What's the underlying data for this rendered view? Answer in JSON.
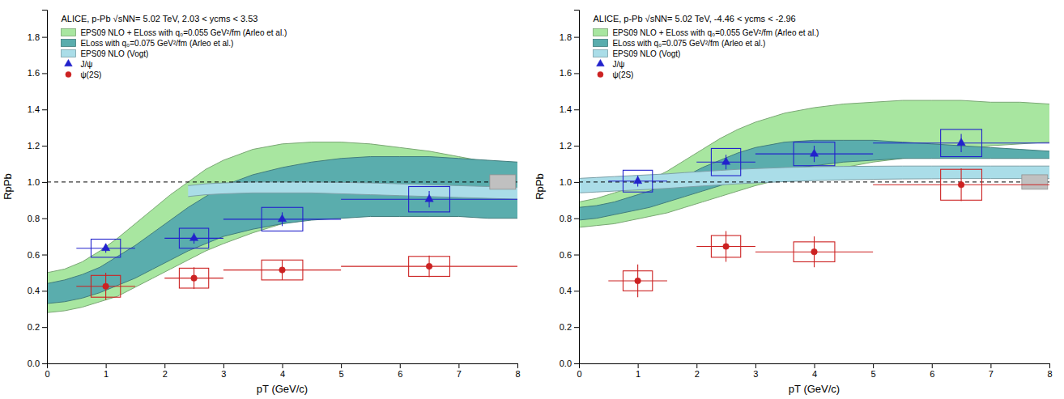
{
  "chart_data": [
    {
      "type": "scatter",
      "title": "ALICE, p-Pb √sNN= 5.02 TeV, 2.03 < ycms < 3.53",
      "x_label": "pT (GeV/c)",
      "y_label": "RpPb",
      "xlim": [
        0,
        8
      ],
      "ylim": [
        0,
        1.95
      ],
      "xticks": [
        0,
        1,
        2,
        3,
        4,
        5,
        6,
        7,
        8
      ],
      "yticks": [
        {
          "value": 0,
          "label": "0.0"
        },
        0.2,
        0.4,
        0.6,
        0.8,
        {
          "value": 1.0,
          "label": "1.0"
        },
        1.2,
        1.4,
        1.6,
        1.8
      ],
      "grid": false,
      "legend": "upper left",
      "reference_line": 1.0,
      "normalization_box": {
        "x": 7.75,
        "y": 1.0,
        "x_error": 0.22,
        "y_error": 0.04,
        "color": "#c0c0c0"
      },
      "series": [
        {
          "name": "EPS09 NLO + ELoss with q₀=0.055 GeV²/fm (Arleo et al.)",
          "type": "band",
          "color": "#a8e6a0",
          "x": [
            0.0,
            0.3,
            0.6,
            0.9,
            1.2,
            1.5,
            1.8,
            2.1,
            2.4,
            2.7,
            3.0,
            3.5,
            4.0,
            4.5,
            5.0,
            5.5,
            6.0,
            6.5,
            7.0,
            7.5,
            8.0
          ],
          "low": [
            0.28,
            0.29,
            0.31,
            0.34,
            0.37,
            0.42,
            0.47,
            0.52,
            0.57,
            0.62,
            0.66,
            0.72,
            0.77,
            0.8,
            0.82,
            0.83,
            0.84,
            0.84,
            0.84,
            0.83,
            0.82
          ],
          "high": [
            0.5,
            0.52,
            0.56,
            0.62,
            0.69,
            0.77,
            0.85,
            0.93,
            1.0,
            1.07,
            1.12,
            1.18,
            1.21,
            1.22,
            1.22,
            1.21,
            1.19,
            1.17,
            1.14,
            1.11,
            1.09
          ]
        },
        {
          "name": "ELoss with q₀=0.075 GeV²/fm (Arleo et al.)",
          "type": "band",
          "color": "#5aadad",
          "x": [
            0.0,
            0.3,
            0.6,
            0.9,
            1.2,
            1.5,
            1.8,
            2.1,
            2.4,
            2.7,
            3.0,
            3.5,
            4.0,
            4.5,
            5.0,
            5.5,
            6.0,
            6.5,
            7.0,
            7.5,
            8.0
          ],
          "low": [
            0.33,
            0.34,
            0.36,
            0.39,
            0.43,
            0.47,
            0.52,
            0.57,
            0.62,
            0.66,
            0.7,
            0.74,
            0.77,
            0.79,
            0.8,
            0.81,
            0.81,
            0.81,
            0.81,
            0.8,
            0.8
          ],
          "high": [
            0.44,
            0.46,
            0.49,
            0.53,
            0.59,
            0.65,
            0.72,
            0.79,
            0.86,
            0.92,
            0.98,
            1.04,
            1.08,
            1.11,
            1.13,
            1.14,
            1.14,
            1.14,
            1.13,
            1.12,
            1.11
          ]
        },
        {
          "name": "EPS09 NLO (Vogt)",
          "type": "band",
          "color": "#aadde8",
          "x": [
            2.4,
            2.7,
            3.0,
            3.5,
            4.0,
            4.5,
            5.0,
            5.5,
            6.0,
            6.5,
            7.0,
            7.5,
            8.0
          ],
          "low": [
            0.92,
            0.93,
            0.935,
            0.94,
            0.94,
            0.94,
            0.935,
            0.93,
            0.925,
            0.92,
            0.915,
            0.91,
            0.905
          ],
          "high": [
            0.98,
            0.99,
            0.995,
            1.0,
            1.0,
            1.0,
            0.998,
            0.995,
            0.99,
            0.985,
            0.98,
            0.975,
            0.97
          ]
        },
        {
          "name": "J/ψ",
          "type": "scatter",
          "marker": "triangle",
          "color": "#2222cc",
          "x": [
            1.0,
            2.5,
            4.0,
            6.5
          ],
          "values": [
            0.635,
            0.69,
            0.795,
            0.905
          ],
          "y_error": [
            0.025,
            0.03,
            0.038,
            0.045
          ],
          "x_error": [
            0.5,
            0.5,
            1.0,
            1.5
          ],
          "syst_y_error": [
            0.05,
            0.055,
            0.065,
            0.07
          ],
          "syst_x_error": [
            0.25,
            0.25,
            0.35,
            0.35
          ]
        },
        {
          "name": "ψ(2S)",
          "type": "scatter",
          "marker": "circle",
          "color": "#cc2222",
          "x": [
            1.0,
            2.5,
            4.0,
            6.5
          ],
          "values": [
            0.425,
            0.47,
            0.515,
            0.535
          ],
          "y_error": [
            0.075,
            0.06,
            0.055,
            0.06
          ],
          "x_error": [
            0.5,
            0.5,
            1.0,
            1.5
          ],
          "syst_y_error": [
            0.06,
            0.055,
            0.055,
            0.055
          ],
          "syst_x_error": [
            0.25,
            0.25,
            0.35,
            0.35
          ]
        }
      ]
    },
    {
      "type": "scatter",
      "title": "ALICE, p-Pb √sNN= 5.02 TeV, -4.46 < ycms < -2.96",
      "x_label": "pT (GeV/c)",
      "y_label": "RpPb",
      "xlim": [
        0,
        8
      ],
      "ylim": [
        0,
        1.95
      ],
      "xticks": [
        0,
        1,
        2,
        3,
        4,
        5,
        6,
        7,
        8
      ],
      "yticks": [
        {
          "value": 0,
          "label": "0.0"
        },
        0.2,
        0.4,
        0.6,
        0.8,
        {
          "value": 1.0,
          "label": "1.0"
        },
        1.2,
        1.4,
        1.6,
        1.8
      ],
      "grid": false,
      "legend": "upper left",
      "reference_line": 1.0,
      "normalization_box": {
        "x": 7.75,
        "y": 1.0,
        "x_error": 0.22,
        "y_error": 0.04,
        "color": "#c0c0c0"
      },
      "series": [
        {
          "name": "EPS09 NLO + ELoss with q₀=0.055 GeV²/fm (Arleo et al.)",
          "type": "band",
          "color": "#a8e6a0",
          "x": [
            0.0,
            0.3,
            0.6,
            0.9,
            1.2,
            1.5,
            1.8,
            2.1,
            2.4,
            2.7,
            3.0,
            3.5,
            4.0,
            4.5,
            5.0,
            5.5,
            6.0,
            6.5,
            7.0,
            7.5,
            8.0
          ],
          "low": [
            0.75,
            0.76,
            0.77,
            0.79,
            0.81,
            0.83,
            0.86,
            0.89,
            0.92,
            0.95,
            0.98,
            1.02,
            1.05,
            1.08,
            1.11,
            1.13,
            1.16,
            1.18,
            1.2,
            1.21,
            1.22
          ],
          "high": [
            0.89,
            0.91,
            0.94,
            0.97,
            1.01,
            1.06,
            1.12,
            1.18,
            1.24,
            1.29,
            1.33,
            1.38,
            1.41,
            1.43,
            1.44,
            1.45,
            1.45,
            1.45,
            1.44,
            1.44,
            1.43
          ]
        },
        {
          "name": "ELoss with q₀=0.075 GeV²/fm (Arleo et al.)",
          "type": "band",
          "color": "#5aadad",
          "x": [
            0.0,
            0.3,
            0.6,
            0.9,
            1.2,
            1.5,
            1.8,
            2.1,
            2.4,
            2.7,
            3.0,
            3.5,
            4.0,
            4.5,
            5.0,
            5.5,
            6.0,
            6.5,
            7.0,
            7.5,
            8.0
          ],
          "low": [
            0.79,
            0.8,
            0.82,
            0.84,
            0.86,
            0.89,
            0.92,
            0.95,
            0.98,
            1.01,
            1.03,
            1.07,
            1.09,
            1.11,
            1.12,
            1.13,
            1.13,
            1.13,
            1.13,
            1.13,
            1.13
          ],
          "high": [
            0.86,
            0.87,
            0.89,
            0.92,
            0.95,
            0.99,
            1.03,
            1.08,
            1.12,
            1.16,
            1.19,
            1.22,
            1.23,
            1.23,
            1.23,
            1.22,
            1.21,
            1.2,
            1.19,
            1.18,
            1.17
          ]
        },
        {
          "name": "EPS09 NLO (Vogt)",
          "type": "band",
          "color": "#aadde8",
          "x": [
            0.0,
            0.3,
            0.6,
            0.9,
            1.2,
            1.5,
            1.8,
            2.1,
            2.4,
            2.7,
            3.0,
            3.5,
            4.0,
            4.5,
            5.0,
            5.5,
            6.0,
            6.5,
            7.0,
            7.5,
            8.0
          ],
          "low": [
            0.94,
            0.945,
            0.95,
            0.955,
            0.96,
            0.965,
            0.972,
            0.978,
            0.984,
            0.99,
            0.995,
            1.002,
            1.008,
            1.012,
            1.015,
            1.017,
            1.018,
            1.019,
            1.019,
            1.019,
            1.019
          ],
          "high": [
            1.02,
            1.025,
            1.03,
            1.035,
            1.04,
            1.045,
            1.052,
            1.058,
            1.064,
            1.07,
            1.074,
            1.08,
            1.084,
            1.086,
            1.087,
            1.088,
            1.088,
            1.088,
            1.088,
            1.088,
            1.088
          ]
        },
        {
          "name": "J/ψ",
          "type": "scatter",
          "marker": "triangle",
          "color": "#2222cc",
          "x": [
            1.0,
            2.5,
            4.0,
            6.5
          ],
          "values": [
            1.005,
            1.11,
            1.155,
            1.215
          ],
          "y_error": [
            0.03,
            0.04,
            0.045,
            0.05
          ],
          "x_error": [
            0.5,
            0.5,
            1.0,
            1.5
          ],
          "syst_y_error": [
            0.06,
            0.075,
            0.065,
            0.075
          ],
          "syst_x_error": [
            0.25,
            0.25,
            0.35,
            0.35
          ]
        },
        {
          "name": "ψ(2S)",
          "type": "scatter",
          "marker": "circle",
          "color": "#cc2222",
          "x": [
            1.0,
            2.5,
            4.0,
            6.5
          ],
          "values": [
            0.455,
            0.645,
            0.615,
            0.985
          ],
          "y_error": [
            0.09,
            0.085,
            0.085,
            0.09
          ],
          "x_error": [
            0.5,
            0.5,
            1.0,
            1.5
          ],
          "syst_y_error": [
            0.055,
            0.06,
            0.055,
            0.085
          ],
          "syst_x_error": [
            0.25,
            0.25,
            0.35,
            0.35
          ]
        }
      ]
    }
  ]
}
